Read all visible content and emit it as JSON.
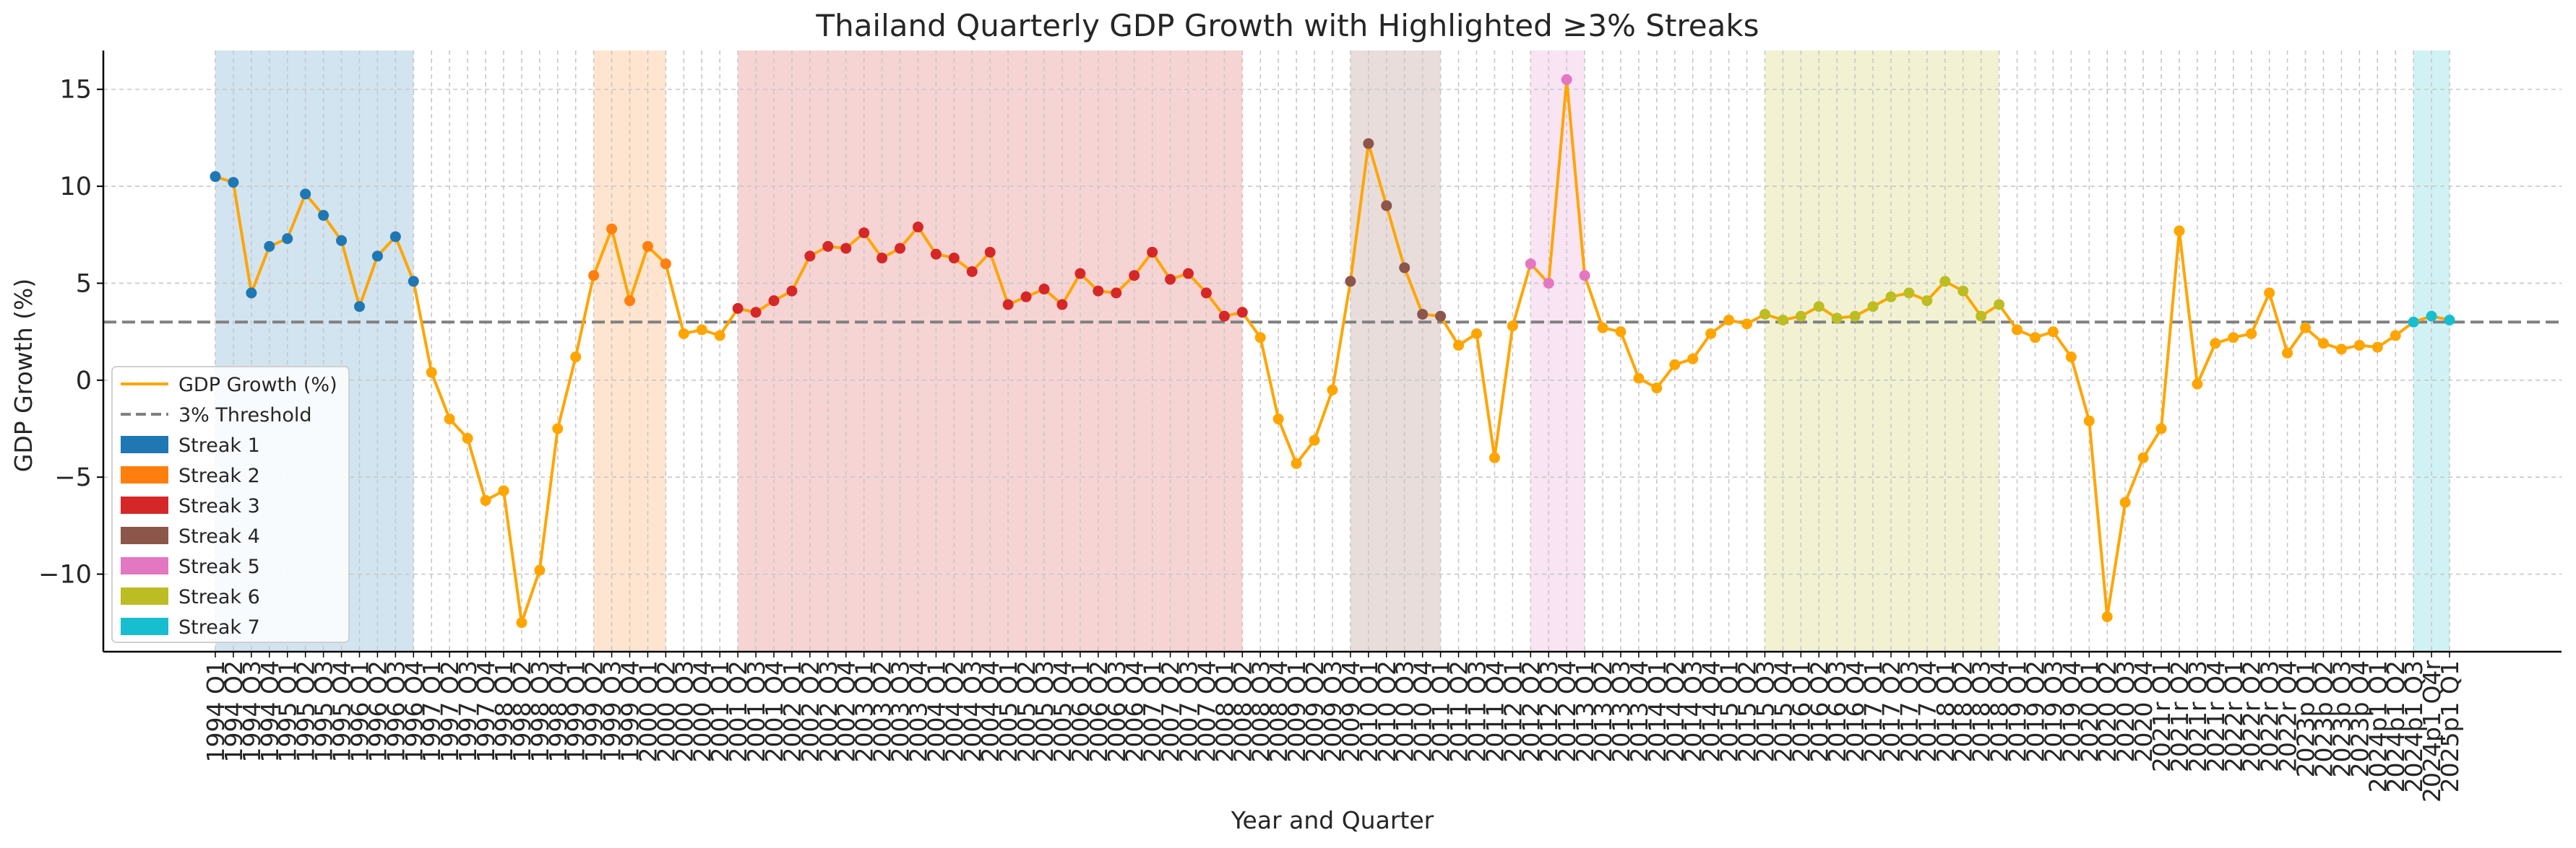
{
  "chart_data": {
    "type": "line",
    "title": "Thailand Quarterly GDP Growth with Highlighted ≥3% Streaks",
    "xlabel": "Year and Quarter",
    "ylabel": "GDP Growth (%)",
    "ylim": [
      -14,
      17
    ],
    "yticks": [
      -10,
      -5,
      0,
      5,
      10,
      15
    ],
    "grid": true,
    "legend_position": "lower-left",
    "threshold": {
      "value": 3,
      "label": "3% Threshold",
      "color": "#808080"
    },
    "line_color": "#FFA500",
    "categories": [
      "1994 Q1",
      "1994 Q2",
      "1994 Q3",
      "1994 Q4",
      "1995 Q1",
      "1995 Q2",
      "1995 Q3",
      "1995 Q4",
      "1996 Q1",
      "1996 Q2",
      "1996 Q3",
      "1996 Q4",
      "1997 Q1",
      "1997 Q2",
      "1997 Q3",
      "1997 Q4",
      "1998 Q1",
      "1998 Q2",
      "1998 Q3",
      "1998 Q4",
      "1999 Q1",
      "1999 Q2",
      "1999 Q3",
      "1999 Q4",
      "2000 Q1",
      "2000 Q2",
      "2000 Q3",
      "2000 Q4",
      "2001 Q1",
      "2001 Q2",
      "2001 Q3",
      "2001 Q4",
      "2002 Q1",
      "2002 Q2",
      "2002 Q3",
      "2002 Q4",
      "2003 Q1",
      "2003 Q2",
      "2003 Q3",
      "2003 Q4",
      "2004 Q1",
      "2004 Q2",
      "2004 Q3",
      "2004 Q4",
      "2005 Q1",
      "2005 Q2",
      "2005 Q3",
      "2005 Q4",
      "2006 Q1",
      "2006 Q2",
      "2006 Q3",
      "2006 Q4",
      "2007 Q1",
      "2007 Q2",
      "2007 Q3",
      "2007 Q4",
      "2008 Q1",
      "2008 Q2",
      "2008 Q3",
      "2008 Q4",
      "2009 Q1",
      "2009 Q2",
      "2009 Q3",
      "2009 Q4",
      "2010 Q1",
      "2010 Q2",
      "2010 Q3",
      "2010 Q4",
      "2011 Q1",
      "2011 Q2",
      "2011 Q3",
      "2011 Q4",
      "2012 Q1",
      "2012 Q2",
      "2012 Q3",
      "2012 Q4",
      "2013 Q1",
      "2013 Q2",
      "2013 Q3",
      "2013 Q4",
      "2014 Q1",
      "2014 Q2",
      "2014 Q3",
      "2014 Q4",
      "2015 Q1",
      "2015 Q2",
      "2015 Q3",
      "2015 Q4",
      "2016 Q1",
      "2016 Q2",
      "2016 Q3",
      "2016 Q4",
      "2017 Q1",
      "2017 Q2",
      "2017 Q3",
      "2017 Q4",
      "2018 Q1",
      "2018 Q2",
      "2018 Q3",
      "2018 Q4",
      "2019 Q1",
      "2019 Q2",
      "2019 Q3",
      "2019 Q4",
      "2020 Q1",
      "2020 Q2",
      "2020 Q3",
      "2020 Q4",
      "2021r Q1",
      "2021r Q2",
      "2021r Q3",
      "2021r Q4",
      "2022r Q1",
      "2022r Q2",
      "2022r Q3",
      "2022r Q4",
      "2023p Q1",
      "2023p Q2",
      "2023p Q3",
      "2023p Q4",
      "2024p1 Q1",
      "2024p1 Q2",
      "2024p1 Q3",
      "2024p1 Q4r",
      "2025p1 Q1"
    ],
    "series": [
      {
        "name": "GDP Growth (%)",
        "values": [
          10.5,
          10.2,
          4.5,
          6.9,
          7.3,
          9.6,
          8.5,
          7.2,
          3.8,
          6.4,
          7.4,
          5.1,
          0.4,
          -2.0,
          -3.0,
          -6.2,
          -5.7,
          -12.5,
          -9.8,
          -2.5,
          1.2,
          5.4,
          7.8,
          4.1,
          6.9,
          6.0,
          2.4,
          2.6,
          2.3,
          3.7,
          3.5,
          4.1,
          4.6,
          6.4,
          6.9,
          6.8,
          7.6,
          6.3,
          6.8,
          7.9,
          6.5,
          6.3,
          5.6,
          6.6,
          3.9,
          4.3,
          4.7,
          3.9,
          5.5,
          4.6,
          4.5,
          5.4,
          6.6,
          5.2,
          5.5,
          4.5,
          3.3,
          3.5,
          2.2,
          -2.0,
          -4.3,
          -3.1,
          -0.5,
          5.1,
          12.2,
          9.0,
          5.8,
          3.4,
          3.3,
          1.8,
          2.4,
          -4.0,
          2.8,
          6.0,
          5.0,
          15.5,
          5.4,
          2.7,
          2.5,
          0.1,
          -0.4,
          0.8,
          1.1,
          2.4,
          3.1,
          2.9,
          3.4,
          3.1,
          3.3,
          3.8,
          3.2,
          3.3,
          3.8,
          4.3,
          4.5,
          4.1,
          5.1,
          4.6,
          3.3,
          3.9,
          2.6,
          2.2,
          2.5,
          1.2,
          -2.1,
          -12.2,
          -6.3,
          -4.0,
          -2.5,
          7.7,
          -0.2,
          1.9,
          2.2,
          2.4,
          4.5,
          1.4,
          2.7,
          1.9,
          1.6,
          1.8,
          1.7,
          2.3,
          3.0,
          3.3,
          3.1
        ]
      }
    ],
    "streaks": [
      {
        "name": "Streak 1",
        "color": "#1f77b4",
        "start": "1994 Q1",
        "end": "1996 Q4"
      },
      {
        "name": "Streak 2",
        "color": "#ff7f0e",
        "start": "1999 Q2",
        "end": "2000 Q2"
      },
      {
        "name": "Streak 3",
        "color": "#d62728",
        "start": "2001 Q2",
        "end": "2008 Q2"
      },
      {
        "name": "Streak 4",
        "color": "#8c564b",
        "start": "2009 Q4",
        "end": "2011 Q1"
      },
      {
        "name": "Streak 5",
        "color": "#e377c2",
        "start": "2012 Q2",
        "end": "2013 Q1"
      },
      {
        "name": "Streak 6",
        "color": "#bcbd22",
        "start": "2015 Q3",
        "end": "2018 Q4"
      },
      {
        "name": "Streak 7",
        "color": "#17becf",
        "start": "2024p1 Q3",
        "end": "2025p1 Q1"
      }
    ]
  }
}
